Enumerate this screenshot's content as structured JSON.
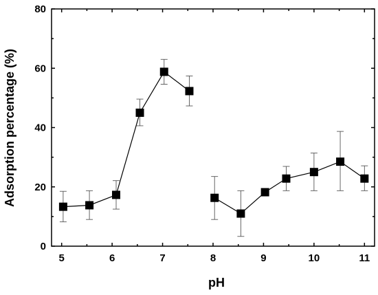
{
  "chart_data": {
    "type": "scatter",
    "title": "",
    "xlabel": "pH",
    "ylabel": "Adsorption percentage (%)",
    "xlim": [
      4.8,
      11.2
    ],
    "ylim": [
      0,
      80
    ],
    "xticks": [
      5,
      6,
      7,
      8,
      9,
      10,
      11
    ],
    "yticks": [
      0,
      20,
      40,
      60,
      80
    ],
    "grid": false,
    "legend": "none",
    "series": [
      {
        "marker": "square",
        "color": "#000000",
        "segments": [
          [
            {
              "x": 5.03,
              "y": 13.3,
              "err_lo": 8.2,
              "err_hi": 18.5
            },
            {
              "x": 5.55,
              "y": 13.8,
              "err_lo": 9.0,
              "err_hi": 18.7
            },
            {
              "x": 6.08,
              "y": 17.3,
              "err_lo": 12.5,
              "err_hi": 22.1
            },
            {
              "x": 6.55,
              "y": 45.0,
              "err_lo": 40.6,
              "err_hi": 49.6
            },
            {
              "x": 7.03,
              "y": 58.8,
              "err_lo": 54.6,
              "err_hi": 63.0
            },
            {
              "x": 7.53,
              "y": 52.3,
              "err_lo": 47.3,
              "err_hi": 57.4
            }
          ],
          [
            {
              "x": 8.03,
              "y": 16.3,
              "err_lo": 9.0,
              "err_hi": 23.5
            },
            {
              "x": 8.55,
              "y": 11.0,
              "err_lo": 3.3,
              "err_hi": 18.7
            },
            {
              "x": 9.03,
              "y": 18.2,
              "err_lo": 18.2,
              "err_hi": 18.2
            },
            {
              "x": 9.45,
              "y": 22.8,
              "err_lo": 18.7,
              "err_hi": 26.9
            },
            {
              "x": 10.0,
              "y": 25.0,
              "err_lo": 18.7,
              "err_hi": 31.4
            },
            {
              "x": 10.52,
              "y": 28.5,
              "err_lo": 18.7,
              "err_hi": 38.7
            },
            {
              "x": 11.0,
              "y": 22.8,
              "err_lo": 18.7,
              "err_hi": 27.1
            }
          ]
        ]
      }
    ]
  }
}
